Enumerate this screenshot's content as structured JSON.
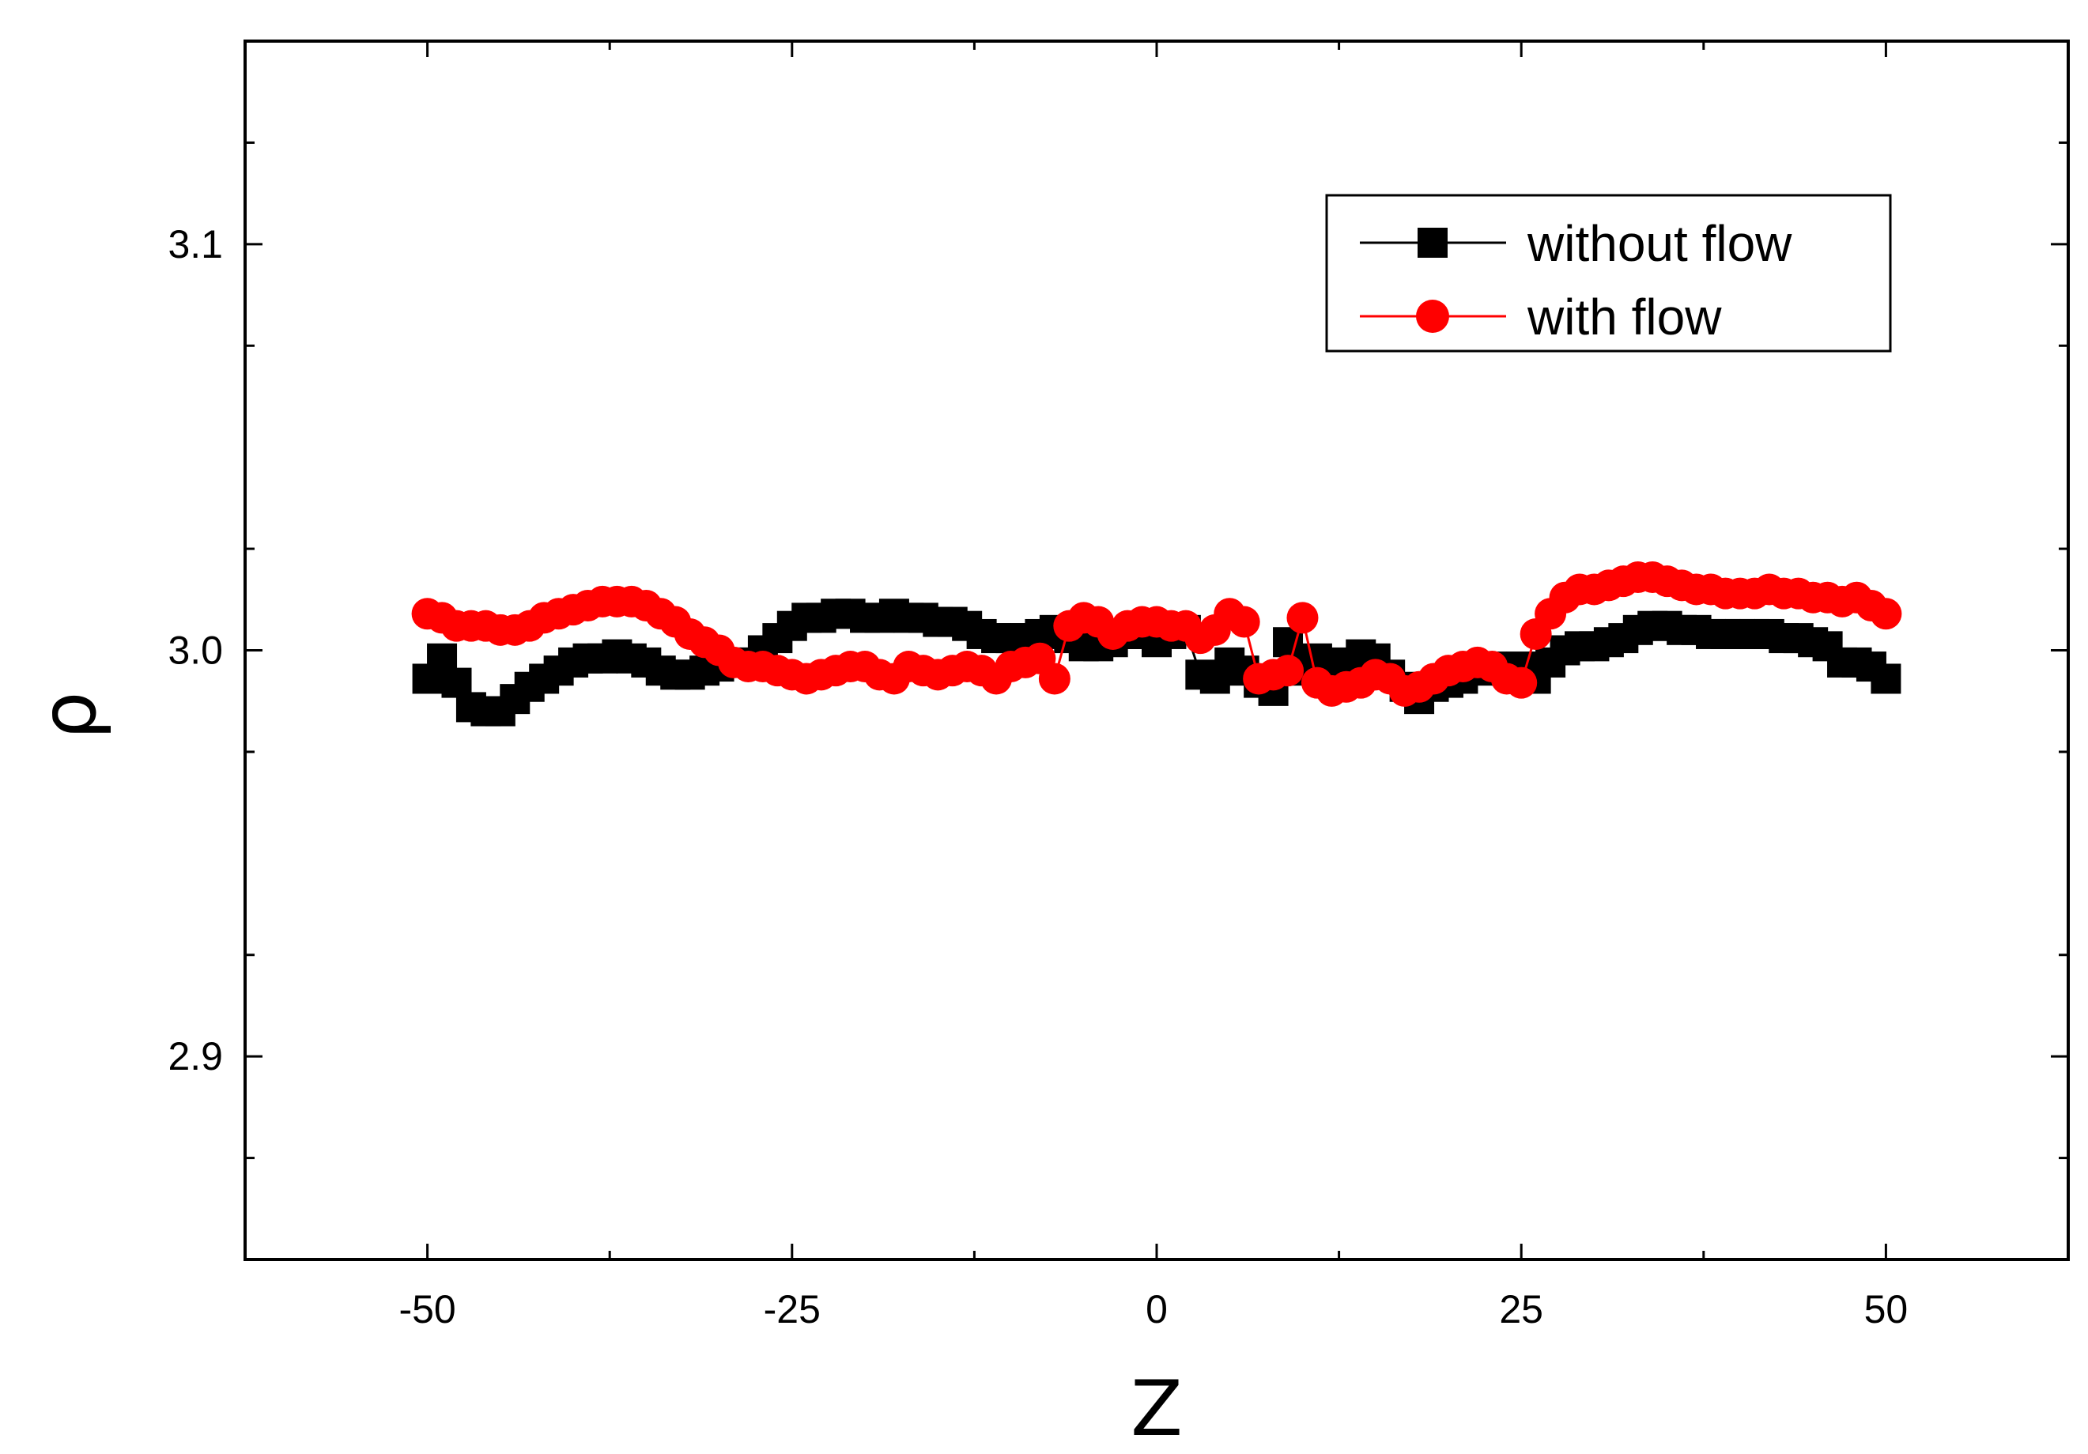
{
  "chart_data": {
    "type": "scatter",
    "title": "",
    "xlabel": "Z",
    "ylabel": "ρ",
    "xlim": [
      -62.5,
      62.5
    ],
    "ylim": [
      2.85,
      3.15
    ],
    "x_ticks": [
      "-50",
      "-25",
      "0",
      "25",
      "50"
    ],
    "y_ticks": [
      "2.9",
      "3.0",
      "3.1"
    ],
    "legend_position": "top-right",
    "grid": false,
    "series": [
      {
        "name": "without flow",
        "color": "#000000",
        "marker": "square",
        "x": [
          -50,
          -49,
          -48,
          -47,
          -46,
          -45,
          -44,
          -43,
          -42,
          -41,
          -40,
          -39,
          -38,
          -37,
          -36,
          -35,
          -34,
          -33,
          -32,
          -31,
          -30,
          -29,
          -28,
          -27,
          -26,
          -25,
          -24,
          -23,
          -22,
          -21,
          -20,
          -19,
          -18,
          -17,
          -16,
          -15,
          -14,
          -13,
          -12,
          -11,
          -10,
          -9,
          -8,
          -7,
          -6,
          -5,
          -4,
          -3,
          -2,
          -1,
          0,
          1,
          2,
          3,
          4,
          5,
          6,
          7,
          8,
          9,
          10,
          11,
          12,
          13,
          14,
          15,
          16,
          17,
          18,
          19,
          20,
          21,
          22,
          23,
          24,
          25,
          26,
          27,
          28,
          29,
          30,
          31,
          32,
          33,
          34,
          35,
          36,
          37,
          38,
          39,
          40,
          41,
          42,
          43,
          44,
          45,
          46,
          47,
          48,
          49,
          50
        ],
        "y": [
          2.993,
          2.998,
          2.992,
          2.986,
          2.985,
          2.985,
          2.988,
          2.991,
          2.993,
          2.995,
          2.997,
          2.998,
          2.998,
          2.999,
          2.998,
          2.997,
          2.995,
          2.994,
          2.994,
          2.995,
          2.996,
          2.997,
          2.997,
          3.0,
          3.003,
          3.006,
          3.008,
          3.008,
          3.009,
          3.009,
          3.008,
          3.008,
          3.009,
          3.008,
          3.008,
          3.007,
          3.007,
          3.006,
          3.004,
          3.003,
          3.003,
          3.003,
          3.004,
          3.005,
          3.003,
          3.001,
          3.001,
          3.002,
          3.004,
          3.004,
          3.002,
          3.004,
          3.005,
          2.994,
          2.993,
          2.997,
          2.995,
          2.992,
          2.99,
          3.002,
          2.995,
          2.998,
          2.996,
          2.997,
          2.999,
          2.998,
          2.994,
          2.991,
          2.988,
          2.991,
          2.992,
          2.993,
          2.995,
          2.996,
          2.995,
          2.996,
          2.993,
          2.997,
          3.0,
          3.001,
          3.001,
          3.002,
          3.003,
          3.005,
          3.006,
          3.006,
          3.005,
          3.005,
          3.004,
          3.004,
          3.004,
          3.004,
          3.004,
          3.003,
          3.003,
          3.002,
          3.001,
          2.997,
          2.997,
          2.996,
          2.993
        ]
      },
      {
        "name": "with flow",
        "color": "#ff0000",
        "marker": "circle",
        "x": [
          -50,
          -49,
          -48,
          -47,
          -46,
          -45,
          -44,
          -43,
          -42,
          -41,
          -40,
          -39,
          -38,
          -37,
          -36,
          -35,
          -34,
          -33,
          -32,
          -31,
          -30,
          -29,
          -28,
          -27,
          -26,
          -25,
          -24,
          -23,
          -22,
          -21,
          -20,
          -19,
          -18,
          -17,
          -16,
          -15,
          -14,
          -13,
          -12,
          -11,
          -10,
          -9,
          -8,
          -7,
          -6,
          -5,
          -4,
          -3,
          -2,
          -1,
          0,
          1,
          2,
          3,
          4,
          5,
          6,
          7,
          8,
          9,
          10,
          11,
          12,
          13,
          14,
          15,
          16,
          17,
          18,
          19,
          20,
          21,
          22,
          23,
          24,
          25,
          26,
          27,
          28,
          29,
          30,
          31,
          32,
          33,
          34,
          35,
          36,
          37,
          38,
          39,
          40,
          41,
          42,
          43,
          44,
          45,
          46,
          47,
          48,
          49,
          50
        ],
        "y": [
          3.009,
          3.008,
          3.006,
          3.006,
          3.006,
          3.005,
          3.005,
          3.006,
          3.008,
          3.009,
          3.01,
          3.011,
          3.012,
          3.012,
          3.012,
          3.011,
          3.009,
          3.007,
          3.004,
          3.002,
          3.0,
          2.997,
          2.996,
          2.996,
          2.995,
          2.994,
          2.993,
          2.994,
          2.995,
          2.996,
          2.996,
          2.994,
          2.993,
          2.996,
          2.995,
          2.994,
          2.995,
          2.996,
          2.995,
          2.993,
          2.996,
          2.997,
          2.998,
          2.993,
          3.006,
          3.008,
          3.007,
          3.004,
          3.006,
          3.007,
          3.007,
          3.006,
          3.006,
          3.003,
          3.005,
          3.009,
          3.007,
          2.993,
          2.994,
          2.995,
          3.008,
          2.992,
          2.99,
          2.991,
          2.992,
          2.994,
          2.993,
          2.99,
          2.991,
          2.993,
          2.995,
          2.996,
          2.997,
          2.996,
          2.993,
          2.992,
          3.004,
          3.009,
          3.013,
          3.015,
          3.015,
          3.016,
          3.017,
          3.018,
          3.018,
          3.017,
          3.016,
          3.015,
          3.015,
          3.014,
          3.014,
          3.014,
          3.015,
          3.014,
          3.014,
          3.013,
          3.013,
          3.012,
          3.013,
          3.011,
          3.009
        ]
      }
    ]
  }
}
